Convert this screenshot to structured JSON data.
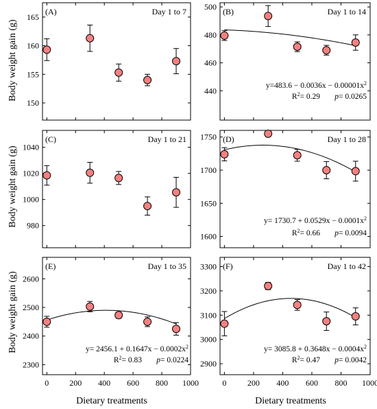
{
  "figure": {
    "ylabel": "Body weight gain (g)",
    "xlabel": "Dietary treatments"
  },
  "colors": {
    "marker": "#f48080",
    "stroke": "#000000"
  },
  "chart_data": [
    {
      "type": "scatter",
      "panel": "(A)",
      "period": "Day 1 to 7",
      "x": [
        0,
        300,
        500,
        700,
        900
      ],
      "y": [
        159.3,
        161.3,
        155.3,
        154.0,
        157.3
      ],
      "error": [
        1.9,
        2.3,
        1.5,
        1.0,
        2.2
      ],
      "xlim": [
        -30,
        1000
      ],
      "ylim": [
        147,
        167.5
      ],
      "yticks": [
        150,
        155,
        160,
        165
      ],
      "xticks": [],
      "equation": "",
      "r2_label": "",
      "p_label": ""
    },
    {
      "type": "scatter",
      "panel": "(B)",
      "period": "Day 1 to 14",
      "x": [
        0,
        300,
        500,
        700,
        900
      ],
      "y": [
        479.5,
        493.5,
        471.5,
        469.0,
        474.5
      ],
      "error": [
        3.5,
        7.5,
        3.5,
        3.5,
        5.5
      ],
      "fit": {
        "a": 483.6,
        "b": -0.0036,
        "c": -1e-05
      },
      "xlim": [
        -30,
        1000
      ],
      "ylim": [
        419,
        503
      ],
      "yticks": [
        440,
        460,
        480,
        500
      ],
      "xticks": [],
      "equation": "y=483.6 − 0.0036x − 0.00001x²",
      "r2_label": "R²= 0.29",
      "p_label": "p= 0.0265"
    },
    {
      "type": "scatter",
      "panel": "(C)",
      "period": "Day 1 to 21",
      "x": [
        0,
        300,
        500,
        700,
        900
      ],
      "y": [
        1018.5,
        1020.5,
        1016.5,
        995.0,
        1005.5
      ],
      "error": [
        7.5,
        8.0,
        5.0,
        7.0,
        11.5
      ],
      "xlim": [
        -30,
        1000
      ],
      "ylim": [
        963,
        1053
      ],
      "yticks": [
        980,
        1000,
        1020,
        1040
      ],
      "xticks": [],
      "equation": "",
      "r2_label": "",
      "p_label": ""
    },
    {
      "type": "scatter",
      "panel": "(D)",
      "period": "Day 1 to 28",
      "x": [
        0,
        300,
        500,
        700,
        900
      ],
      "y": [
        1724.0,
        1755.0,
        1722.5,
        1700.0,
        1698.5
      ],
      "error": [
        10.0,
        4.0,
        9.0,
        13.0,
        15.0
      ],
      "fit": {
        "a": 1730.7,
        "b": 0.0529,
        "c": -0.0001
      },
      "xlim": [
        -30,
        1000
      ],
      "ylim": [
        1583,
        1760
      ],
      "yticks": [
        1600,
        1650,
        1700,
        1750
      ],
      "xticks": [],
      "equation": "y= 1730.7 + 0.0529x − 0.0001x²",
      "r2_label": "R²= 0.66",
      "p_label": "p= 0.0094"
    },
    {
      "type": "scatter",
      "panel": "(E)",
      "period": "Day 1 to 35",
      "x": [
        0,
        300,
        500,
        700,
        900
      ],
      "y": [
        2450.0,
        2503.0,
        2473.0,
        2450.0,
        2425.0
      ],
      "error": [
        19.0,
        18.0,
        11.0,
        17.0,
        22.0
      ],
      "fit": {
        "a": 2456.1,
        "b": 0.1647,
        "c": -0.0002
      },
      "xlim": [
        -30,
        1000
      ],
      "ylim": [
        2265,
        2675
      ],
      "yticks": [
        2300,
        2400,
        2500,
        2600
      ],
      "xticks": [
        0,
        200,
        400,
        600,
        800,
        1000
      ],
      "equation": "y= 2456.1 + 0.1647x − 0.0002x²",
      "r2_label": "R²= 0.83",
      "p_label": "p= 0.0224"
    },
    {
      "type": "scatter",
      "panel": "(F)",
      "period": "Day 1 to 42",
      "x": [
        0,
        300,
        500,
        700,
        900
      ],
      "y": [
        3065.0,
        3220.0,
        3142.0,
        3075.0,
        3095.0
      ],
      "error": [
        50.0,
        15.0,
        22.0,
        38.0,
        35.0
      ],
      "fit": {
        "a": 3085.8,
        "b": 0.3648,
        "c": -0.0004
      },
      "xlim": [
        -30,
        1000
      ],
      "ylim": [
        2855,
        3338
      ],
      "yticks": [
        2900,
        3000,
        3100,
        3200,
        3300
      ],
      "xticks": [
        0,
        200,
        400,
        600,
        800,
        1000
      ],
      "equation": "y= 3085.8 + 0.3648x − 0.0004x²",
      "r2_label": "R²= 0.47",
      "p_label": "p= 0.0042"
    }
  ]
}
